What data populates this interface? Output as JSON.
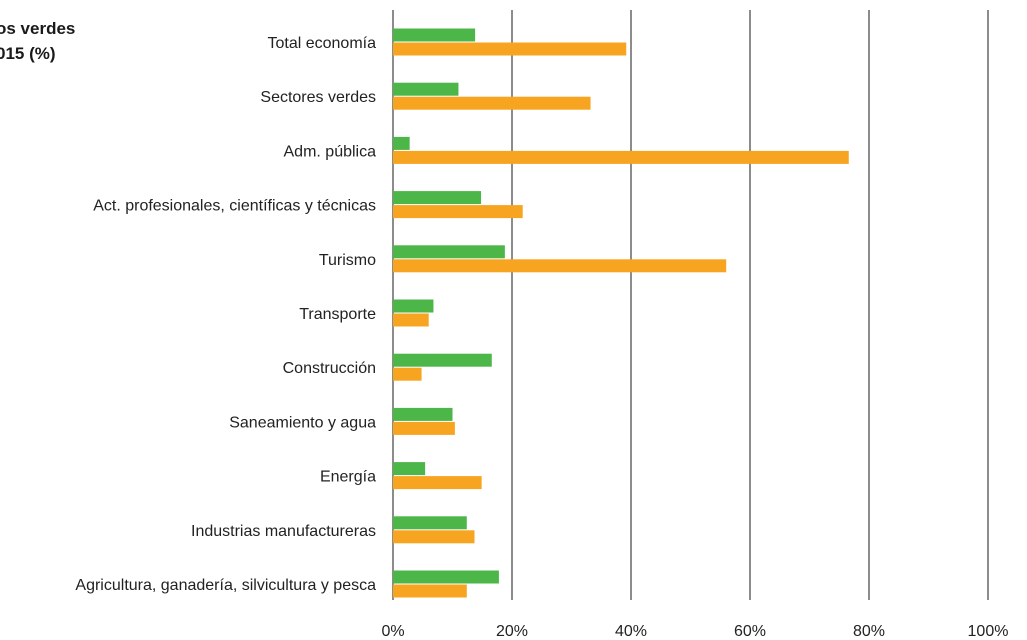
{
  "chart_title": {
    "line1": "os verdes",
    "line2": "015 (%)"
  },
  "chart_data": {
    "type": "bar",
    "orientation": "horizontal",
    "title": "os verdes 015 (%)",
    "categories": [
      "Total economía",
      "Sectores verdes",
      "Adm. pública",
      "Act. profesionales, científicas y técnicas",
      "Turismo",
      "Transporte",
      "Construcción",
      "Saneamiento y agua",
      "Energía",
      "Industrias manufactureras",
      "Agricultura, ganadería, silvicultura y pesca"
    ],
    "series": [
      {
        "color": "#4cb648",
        "values": [
          13.8,
          11.0,
          2.8,
          14.8,
          18.8,
          6.8,
          16.6,
          10.0,
          5.4,
          12.4,
          17.8
        ]
      },
      {
        "color": "#f7a520",
        "values": [
          39.2,
          33.2,
          76.6,
          21.8,
          56.0,
          6.0,
          4.8,
          10.4,
          14.9,
          13.7,
          12.4
        ]
      }
    ],
    "xlim": [
      0,
      100
    ],
    "x_ticks": [
      "0%",
      "20%",
      "40%",
      "60%",
      "80%",
      "100%"
    ],
    "grid": true
  }
}
